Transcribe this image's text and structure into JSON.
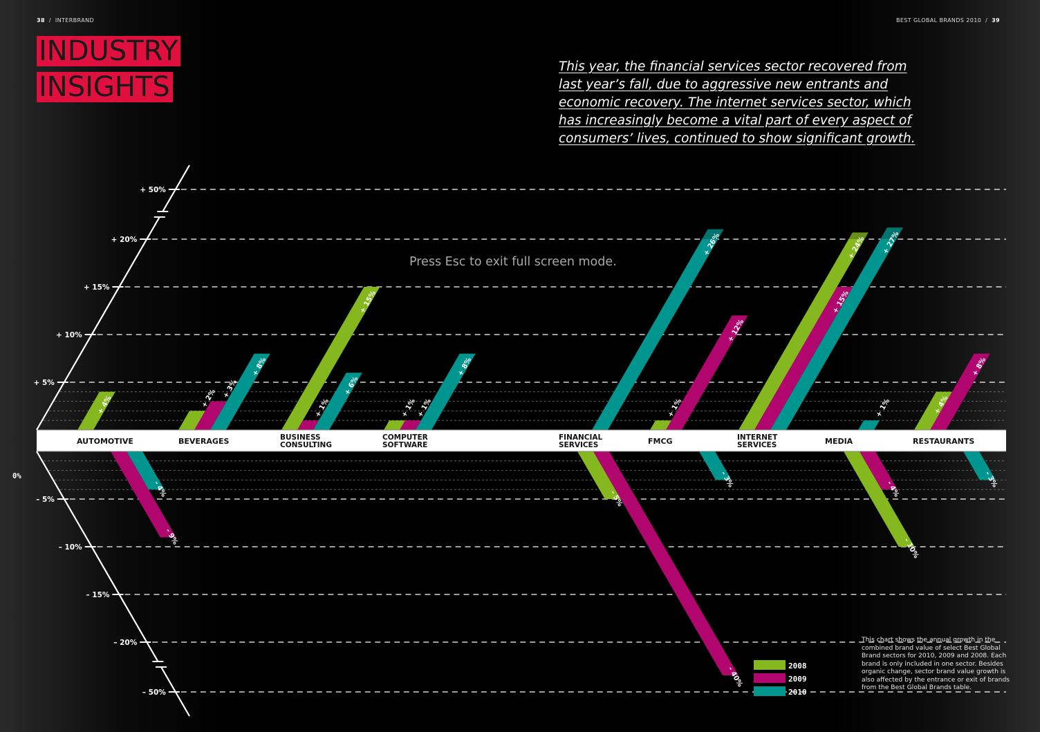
{
  "header": {
    "left_page_number": "38",
    "left_publication": "INTERBRAND",
    "right_publication": "BEST GLOBAL BRANDS 2010",
    "right_page_number": "39",
    "separator": "/"
  },
  "title": {
    "line1": "INDUSTRY",
    "line2": "INSIGHTS",
    "accent_color": "#e0103e"
  },
  "intro_text": "This year, the financial services sector recovered from last year’s fall, due to aggressive new entrants and economic recovery. The internet services sector, which has increasingly become a vital part of every aspect of consumers’ lives, continued to show significant growth.",
  "overlay_message": "Press Esc to exit full screen mode.",
  "note_text": "This chart shows the annual growth in the combined brand value of select Best Global Brand sectors for 2010, 2009 and 2008. Each brand is only included in one sector. Besides organic change, sector brand value growth is also affected by the entrance or exit of brands from the Best Global Brands table.",
  "chart_data": {
    "type": "bar",
    "title": "INDUSTRY INSIGHTS",
    "xlabel": "",
    "ylabel": "",
    "zero_label": "0%",
    "ylim": [
      -50,
      50
    ],
    "axis_break": "scale jumps from 20% to 50% (broken axis)",
    "y_ticks": [
      {
        "value": 50,
        "label": "+ 50%"
      },
      {
        "value": 20,
        "label": "+ 20%"
      },
      {
        "value": 15,
        "label": "+ 15%"
      },
      {
        "value": 10,
        "label": "+ 10%"
      },
      {
        "value": 5,
        "label": "+ 5%"
      },
      {
        "value": -5,
        "label": "– 5%"
      },
      {
        "value": -10,
        "label": "– 10%"
      },
      {
        "value": -15,
        "label": "– 15%"
      },
      {
        "value": -20,
        "label": "– 20%"
      },
      {
        "value": -50,
        "label": "– 50%"
      }
    ],
    "categories": [
      [
        "AUTOMOTIVE"
      ],
      [
        "BEVERAGES"
      ],
      [
        "BUSINESS",
        "CONSULTING"
      ],
      [
        "COMPUTER",
        "SOFTWARE"
      ],
      [
        "FINANCIAL",
        "SERVICES"
      ],
      [
        "FMCG"
      ],
      [
        "INTERNET",
        "SERVICES"
      ],
      [
        "MEDIA"
      ],
      [
        "RESTAURANTS"
      ]
    ],
    "series": [
      {
        "name": "2008",
        "color": "#84b81e",
        "values": [
          4,
          2,
          15,
          1,
          -5,
          1,
          24,
          -10,
          4
        ],
        "labels": [
          "+ 4%",
          "+ 2%",
          "+ 15%",
          "+ 1%",
          "- 5%",
          "+ 1%",
          "+ 24%",
          "- 10%",
          "+ 4%"
        ]
      },
      {
        "name": "2009",
        "color": "#b0066e",
        "values": [
          -9,
          3,
          1,
          1,
          -40,
          12,
          15,
          -4,
          8
        ],
        "labels": [
          "- 9%",
          "+ 3%",
          "+ 1%",
          "+ 1%",
          "- 40%",
          "+ 12%",
          "+ 15%",
          "- 4%",
          "+ 8%"
        ]
      },
      {
        "name": "2010",
        "color": "#00968f",
        "values": [
          -4,
          8,
          6,
          8,
          26,
          -3,
          27,
          1,
          -3
        ],
        "labels": [
          "- 4%",
          "+ 8%",
          "+ 6%",
          "+ 8%",
          "+ 26%",
          "- 3%",
          "+ 27%",
          "+ 1%",
          "- 3%"
        ]
      }
    ],
    "legend": "bottom-right",
    "grid": true
  }
}
